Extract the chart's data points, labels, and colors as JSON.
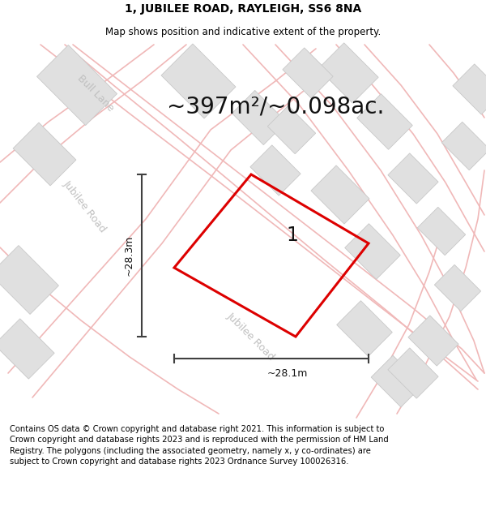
{
  "title": "1, JUBILEE ROAD, RAYLEIGH, SS6 8NA",
  "subtitle": "Map shows position and indicative extent of the property.",
  "area_text": "~397m²/~0.098ac.",
  "width_label": "~28.1m",
  "height_label": "~28.3m",
  "property_label": "1",
  "footer_text": "Contains OS data © Crown copyright and database right 2021. This information is subject to Crown copyright and database rights 2023 and is reproduced with the permission of HM Land Registry. The polygons (including the associated geometry, namely x, y co-ordinates) are subject to Crown copyright and database rights 2023 Ordnance Survey 100026316.",
  "map_bg_color": "#f2f2f2",
  "property_color": "#dd0000",
  "dim_color": "#404040",
  "road_color": "#f0b8b8",
  "road_lw": 1.2,
  "building_color": "#e0e0e0",
  "building_edge_color": "#c8c8c8",
  "road_label_color": "#c0c0c0",
  "title_fontsize": 10,
  "subtitle_fontsize": 8.5,
  "area_fontsize": 20,
  "label_fontsize": 9,
  "footer_fontsize": 7.2,
  "road_label_fontsize": 9
}
